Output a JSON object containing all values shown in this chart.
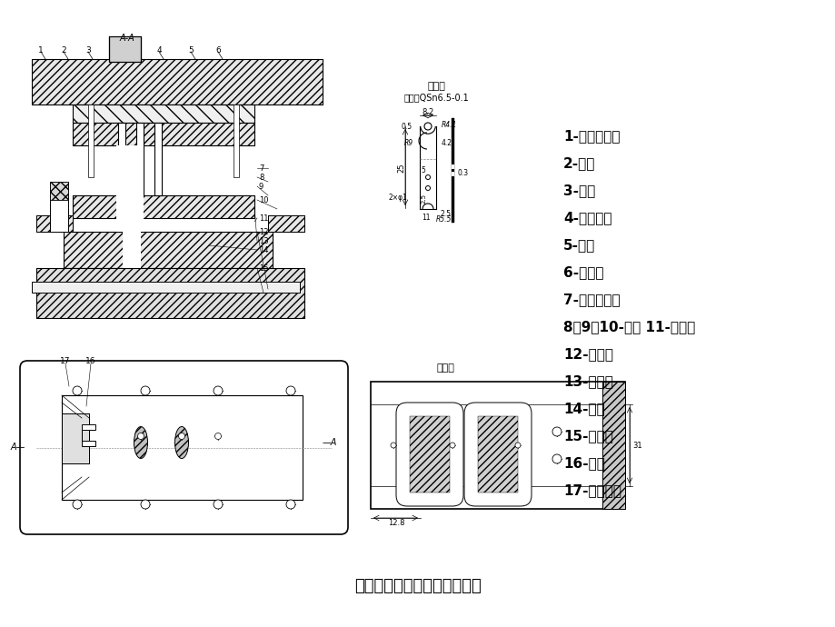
{
  "title": "双侧刃定距的冲孔落料级进模",
  "background_color": "#ffffff",
  "legend_items": [
    "1-内六角螺钉",
    "2-销钉",
    "3-模柄",
    "4-卸料螺钉",
    "5-垫板",
    "6-上模座",
    "7-凸模固定板",
    "8、9、10-凸模 11-导料板",
    "12-承料板",
    "13-卸料板",
    "14-凹模",
    "15-下模座",
    "16-侧刃",
    "17-侧刃挡块"
  ],
  "part_drawing_title": "工件图",
  "part_drawing_material": "材料：QSn6.5-0.1",
  "layout_title": "排样图",
  "section_label": "A-A",
  "dim_8_2": "8.2",
  "dim_R4_1": "R4.1",
  "dim_0_5": "0.5",
  "dim_R9": "R9",
  "dim_25": "25",
  "dim_5": "5",
  "dim_2_5a": "2.5",
  "dim_11": "11",
  "dim_2_5b": "2.5",
  "dim_R5_5": "R5.5",
  "dim_0_3": "0.3",
  "dim_4_2": "4.2",
  "dim_2xphi1": "2×φ1",
  "dim_31": "31",
  "dim_12_8": "12.8"
}
